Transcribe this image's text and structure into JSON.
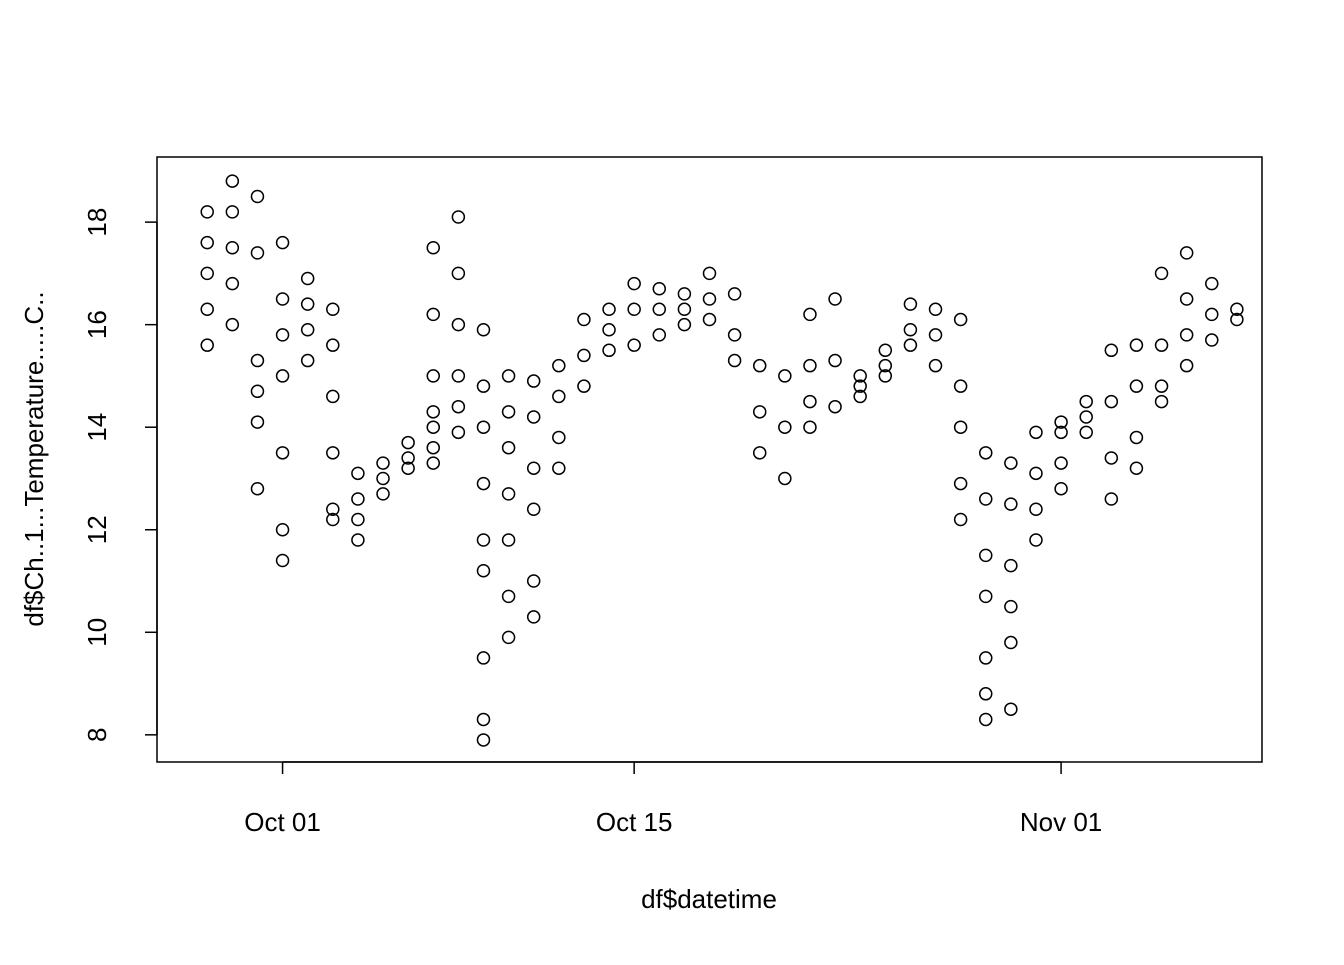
{
  "chart_data": {
    "type": "scatter",
    "xlabel": "df$datetime",
    "ylabel": "df$Ch..1...Temperature.....C..",
    "xlim": [
      "Sep 26",
      "Nov 09"
    ],
    "xticks": [
      "Oct 01",
      "Oct 15",
      "Nov 01"
    ],
    "ylim": [
      7.47,
      19.27
    ],
    "yticks": [
      8,
      10,
      12,
      14,
      16,
      18
    ],
    "color": "#000000",
    "x": [
      "Sep 28",
      "Sep 28",
      "Sep 28",
      "Sep 28",
      "Sep 28",
      "Sep 29",
      "Sep 29",
      "Sep 29",
      "Sep 29",
      "Sep 29",
      "Sep 30",
      "Sep 30",
      "Sep 30",
      "Sep 30",
      "Sep 30",
      "Sep 30",
      "Oct 01",
      "Oct 01",
      "Oct 01",
      "Oct 01",
      "Oct 01",
      "Oct 01",
      "Oct 01",
      "Oct 02",
      "Oct 02",
      "Oct 02",
      "Oct 02",
      "Oct 03",
      "Oct 03",
      "Oct 03",
      "Oct 03",
      "Oct 03",
      "Oct 03",
      "Oct 04",
      "Oct 04",
      "Oct 04",
      "Oct 04",
      "Oct 05",
      "Oct 05",
      "Oct 05",
      "Oct 06",
      "Oct 06",
      "Oct 06",
      "Oct 07",
      "Oct 07",
      "Oct 07",
      "Oct 07",
      "Oct 07",
      "Oct 07",
      "Oct 07",
      "Oct 08",
      "Oct 08",
      "Oct 08",
      "Oct 08",
      "Oct 08",
      "Oct 08",
      "Oct 09",
      "Oct 09",
      "Oct 09",
      "Oct 09",
      "Oct 09",
      "Oct 09",
      "Oct 09",
      "Oct 09",
      "Oct 09",
      "Oct 10",
      "Oct 10",
      "Oct 10",
      "Oct 10",
      "Oct 10",
      "Oct 10",
      "Oct 10",
      "Oct 11",
      "Oct 11",
      "Oct 11",
      "Oct 11",
      "Oct 11",
      "Oct 11",
      "Oct 12",
      "Oct 12",
      "Oct 12",
      "Oct 12",
      "Oct 13",
      "Oct 13",
      "Oct 13",
      "Oct 14",
      "Oct 14",
      "Oct 14",
      "Oct 15",
      "Oct 15",
      "Oct 15",
      "Oct 16",
      "Oct 16",
      "Oct 16",
      "Oct 17",
      "Oct 17",
      "Oct 17",
      "Oct 18",
      "Oct 18",
      "Oct 18",
      "Oct 19",
      "Oct 19",
      "Oct 19",
      "Oct 20",
      "Oct 20",
      "Oct 20",
      "Oct 21",
      "Oct 21",
      "Oct 21",
      "Oct 22",
      "Oct 22",
      "Oct 22",
      "Oct 22",
      "Oct 23",
      "Oct 23",
      "Oct 23",
      "Oct 24",
      "Oct 24",
      "Oct 24",
      "Oct 25",
      "Oct 25",
      "Oct 25",
      "Oct 26",
      "Oct 26",
      "Oct 26",
      "Oct 27",
      "Oct 27",
      "Oct 27",
      "Oct 28",
      "Oct 28",
      "Oct 28",
      "Oct 28",
      "Oct 28",
      "Oct 29",
      "Oct 29",
      "Oct 29",
      "Oct 29",
      "Oct 29",
      "Oct 29",
      "Oct 29",
      "Oct 30",
      "Oct 30",
      "Oct 30",
      "Oct 30",
      "Oct 30",
      "Oct 30",
      "Oct 31",
      "Oct 31",
      "Oct 31",
      "Oct 31",
      "Nov 01",
      "Nov 01",
      "Nov 01",
      "Nov 01",
      "Nov 02",
      "Nov 02",
      "Nov 02",
      "Nov 03",
      "Nov 03",
      "Nov 03",
      "Nov 03",
      "Nov 04",
      "Nov 04",
      "Nov 04",
      "Nov 04",
      "Nov 05",
      "Nov 05",
      "Nov 05",
      "Nov 05",
      "Nov 06",
      "Nov 06",
      "Nov 06",
      "Nov 06",
      "Nov 07",
      "Nov 07",
      "Nov 07",
      "Nov 08",
      "Nov 08"
    ],
    "values": [
      18.2,
      17.6,
      17.0,
      16.3,
      15.6,
      18.8,
      18.2,
      17.5,
      16.8,
      16.0,
      18.5,
      17.4,
      15.3,
      14.7,
      14.1,
      12.8,
      17.6,
      16.5,
      15.8,
      15.0,
      13.5,
      12.0,
      11.4,
      16.9,
      16.4,
      15.9,
      15.3,
      16.3,
      15.6,
      14.6,
      13.5,
      12.4,
      12.2,
      13.1,
      12.6,
      12.2,
      11.8,
      13.3,
      13.0,
      12.7,
      13.7,
      13.4,
      13.2,
      14.3,
      14.0,
      13.6,
      13.3,
      17.5,
      16.2,
      15.0,
      18.1,
      17.0,
      16.0,
      15.0,
      14.4,
      13.9,
      15.9,
      14.8,
      14.0,
      12.9,
      11.8,
      11.2,
      9.5,
      8.3,
      7.9,
      15.0,
      14.3,
      13.6,
      12.7,
      11.8,
      10.7,
      9.9,
      14.9,
      14.2,
      13.2,
      12.4,
      11.0,
      10.3,
      15.2,
      14.6,
      13.8,
      13.2,
      16.1,
      15.4,
      14.8,
      16.3,
      15.9,
      15.5,
      16.8,
      16.3,
      15.6,
      16.7,
      16.3,
      15.8,
      16.6,
      16.3,
      16.0,
      17.0,
      16.5,
      16.1,
      16.6,
      15.8,
      15.3,
      15.2,
      14.3,
      13.5,
      15.0,
      14.0,
      13.0,
      16.2,
      15.2,
      14.5,
      14.0,
      16.5,
      15.3,
      14.4,
      15.0,
      14.8,
      14.6,
      15.5,
      15.2,
      15.0,
      16.4,
      15.9,
      15.6,
      16.3,
      15.8,
      15.2,
      16.1,
      14.8,
      14.0,
      12.9,
      12.2,
      13.5,
      12.6,
      11.5,
      10.7,
      9.5,
      8.8,
      8.3,
      13.3,
      12.5,
      11.3,
      10.5,
      9.8,
      8.5,
      13.9,
      13.1,
      12.4,
      11.8,
      14.1,
      13.9,
      13.3,
      12.8,
      14.5,
      14.2,
      13.9,
      15.5,
      14.5,
      13.4,
      12.6,
      15.6,
      14.8,
      13.8,
      13.2,
      17.0,
      15.6,
      14.8,
      14.5,
      17.4,
      16.5,
      15.8,
      15.2,
      16.8,
      16.2,
      15.7,
      16.3,
      16.1
    ]
  }
}
